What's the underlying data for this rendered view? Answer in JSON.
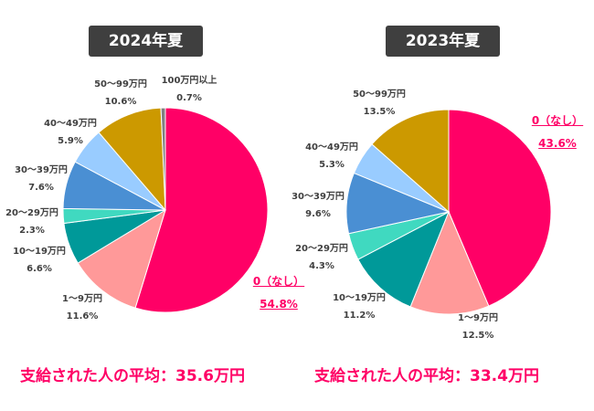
{
  "chart_data": [
    {
      "type": "pie",
      "title": "2024年夏",
      "categories": [
        "0（なし）",
        "1～9万円",
        "10～19万円",
        "20～29万円",
        "30～39万円",
        "40～49万円",
        "50～99万円",
        "100万円以上"
      ],
      "values": [
        54.8,
        11.6,
        6.6,
        2.3,
        7.6,
        5.9,
        10.6,
        0.7
      ],
      "labels": [
        "54.8%",
        "11.6%",
        "6.6%",
        "2.3%",
        "7.6%",
        "5.9%",
        "10.6%",
        "0.7%"
      ],
      "colors": [
        "#ff0066",
        "#ff9999",
        "#009999",
        "#40d9c0",
        "#4a8fd3",
        "#99ccff",
        "#cc9900",
        "#808080"
      ],
      "average": "支給された人の平均：35.6万円"
    },
    {
      "type": "pie",
      "title": "2023年夏",
      "categories": [
        "0（なし）",
        "1～9万円",
        "10～19万円",
        "20～29万円",
        "30～39万円",
        "40～49万円",
        "50～99万円"
      ],
      "values": [
        43.6,
        12.5,
        11.2,
        4.3,
        9.6,
        5.3,
        13.5
      ],
      "labels": [
        "43.6%",
        "12.5%",
        "11.2%",
        "4.3%",
        "9.6%",
        "5.3%",
        "13.5%"
      ],
      "colors": [
        "#ff0066",
        "#ff9999",
        "#009999",
        "#40d9c0",
        "#4a8fd3",
        "#99ccff",
        "#cc9900"
      ],
      "average": "支給された人の平均：33.4万円"
    }
  ]
}
